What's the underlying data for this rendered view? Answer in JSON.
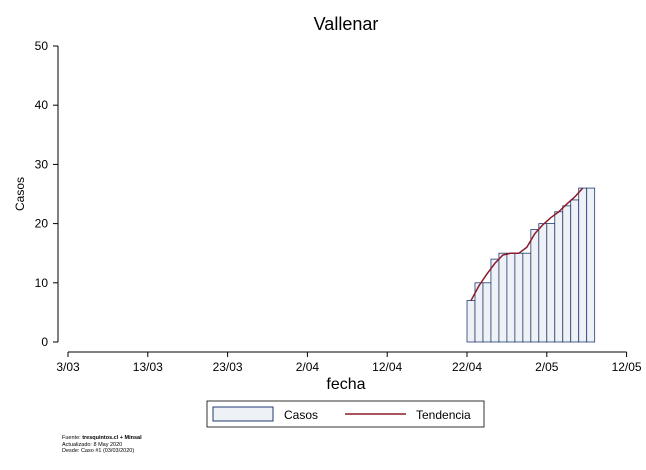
{
  "chart_data": {
    "type": "bar",
    "title": "Vallenar",
    "xlabel": "fecha",
    "ylabel": "Casos",
    "ylim": [
      0,
      50
    ],
    "yticks": [
      0,
      10,
      20,
      30,
      40,
      50
    ],
    "xticks": [
      "3/03",
      "13/03",
      "23/03",
      "2/04",
      "12/04",
      "22/04",
      "2/05",
      "12/05"
    ],
    "grid": false,
    "legend_position": "bottom",
    "series": [
      {
        "name": "Casos",
        "type": "bar",
        "x": [
          "22/04",
          "23/04",
          "24/04",
          "25/04",
          "26/04",
          "27/04",
          "28/04",
          "29/04",
          "30/04",
          "1/05",
          "2/05",
          "3/05",
          "4/05",
          "5/05",
          "6/05",
          "7/05"
        ],
        "values": [
          7,
          10,
          10,
          14,
          15,
          15,
          15,
          15,
          19,
          20,
          20,
          22,
          23,
          24,
          26,
          26
        ]
      },
      {
        "name": "Tendencia",
        "type": "line",
        "x": [
          "22/04",
          "23/04",
          "24/04",
          "25/04",
          "26/04",
          "27/04",
          "28/04",
          "29/04",
          "30/04",
          "1/05",
          "2/05",
          "3/05",
          "4/05",
          "5/05",
          "6/05"
        ],
        "values": [
          7,
          9.5,
          11.5,
          13.3,
          14.7,
          15,
          15,
          16,
          18.3,
          19.8,
          21,
          22,
          23.3,
          24.5,
          26
        ]
      }
    ],
    "colors": {
      "bar_fill": "#eef2f6",
      "bar_stroke": "#1f3b6e",
      "trend": "#8b1a2b"
    }
  },
  "footer": {
    "source_prefix": "Fuente: ",
    "source_bold": "tresquintos.cl + Minsal",
    "updated": "Actualizado: 8 May 2020",
    "since": "Desde: Caso #1  (03/03/2020)"
  }
}
